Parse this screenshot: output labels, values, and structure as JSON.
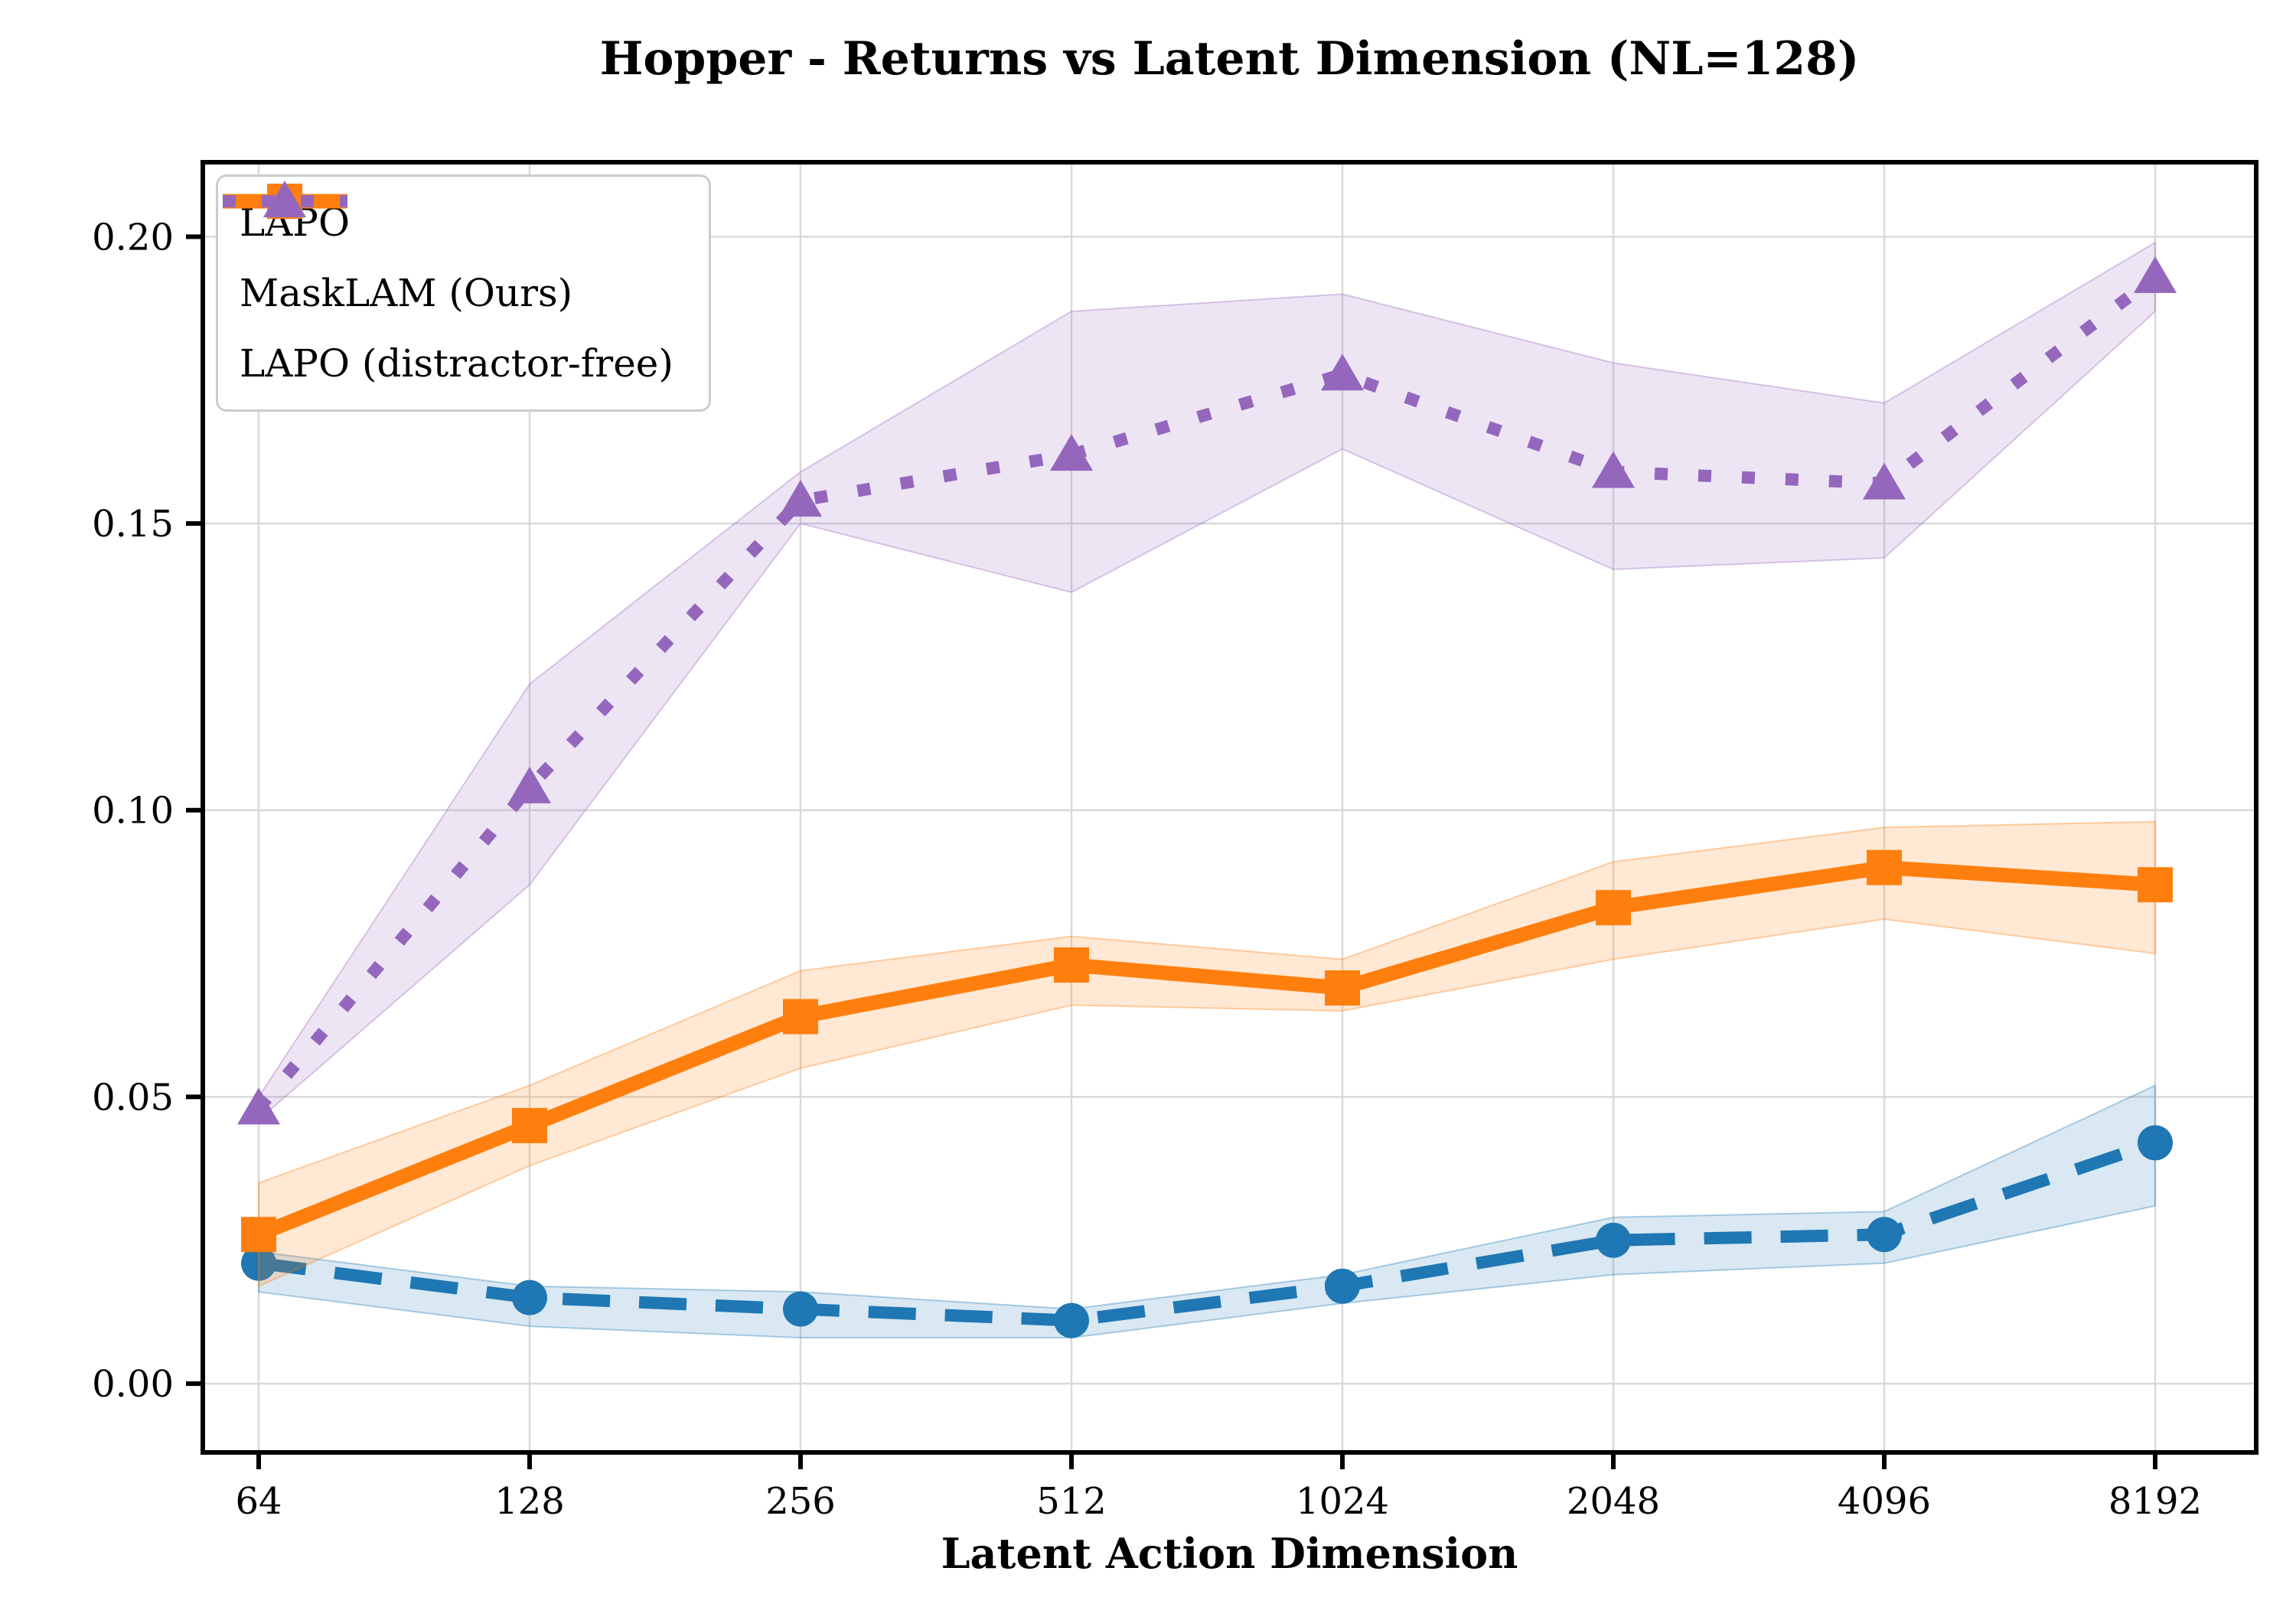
{
  "figure": {
    "background": "#ffffff",
    "grid_color": "#d9d9d9",
    "spine_color": "#000000"
  },
  "chart_data": {
    "type": "line",
    "title": "Hopper - Returns vs Latent Dimension (NL=128)",
    "xlabel": "Latent Action Dimension",
    "ylabel": "",
    "x_scale": "log2-categorical",
    "categories": [
      "64",
      "128",
      "256",
      "512",
      "1024",
      "2048",
      "4096",
      "8192"
    ],
    "ytick_labels": [
      "0.00",
      "0.05",
      "0.10",
      "0.15",
      "0.20"
    ],
    "ytick_values": [
      0.0,
      0.05,
      0.1,
      0.15,
      0.2
    ],
    "ylim": [
      -0.012,
      0.213
    ],
    "grid": true,
    "legend_position": "upper-left",
    "series": [
      {
        "name": "LAPO",
        "color": "#1f77b4",
        "band_color": "rgba(31,119,180,0.17)",
        "linestyle": "dashed",
        "marker": "circle",
        "values": [
          0.021,
          0.015,
          0.013,
          0.011,
          0.017,
          0.025,
          0.026,
          0.042
        ],
        "band_lower": [
          0.016,
          0.01,
          0.008,
          0.008,
          0.014,
          0.019,
          0.021,
          0.031
        ],
        "band_upper": [
          0.023,
          0.017,
          0.016,
          0.013,
          0.019,
          0.029,
          0.03,
          0.052
        ]
      },
      {
        "name": "MaskLAM (Ours)",
        "color": "#ff7f0e",
        "band_color": "rgba(255,127,14,0.18)",
        "linestyle": "solid",
        "marker": "square",
        "values": [
          0.026,
          0.045,
          0.064,
          0.073,
          0.069,
          0.083,
          0.09,
          0.087
        ],
        "band_lower": [
          0.017,
          0.038,
          0.055,
          0.066,
          0.065,
          0.074,
          0.081,
          0.075
        ],
        "band_upper": [
          0.035,
          0.052,
          0.072,
          0.078,
          0.074,
          0.091,
          0.097,
          0.098
        ]
      },
      {
        "name": "LAPO (distractor-free)",
        "color": "#9467bd",
        "band_color": "rgba(148,103,189,0.17)",
        "linestyle": "dotted",
        "marker": "triangle",
        "values": [
          0.048,
          0.104,
          0.154,
          0.162,
          0.176,
          0.159,
          0.157,
          0.193
        ],
        "band_lower": [
          0.046,
          0.087,
          0.15,
          0.138,
          0.163,
          0.142,
          0.144,
          0.187
        ],
        "band_upper": [
          0.05,
          0.122,
          0.159,
          0.187,
          0.19,
          0.178,
          0.171,
          0.199
        ]
      }
    ]
  }
}
